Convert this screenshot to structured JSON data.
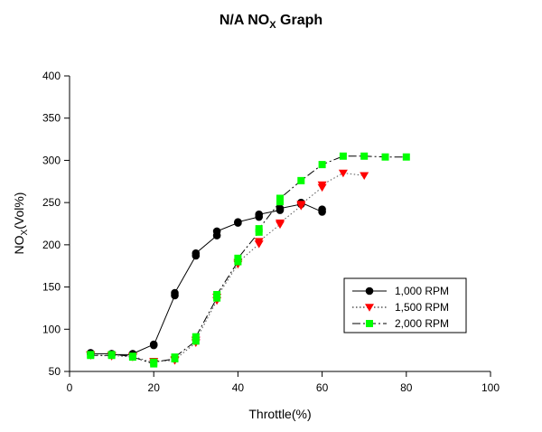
{
  "chart_data": {
    "type": "line",
    "title": {
      "main": "N/A NO",
      "sub": "X",
      "suffix": " Graph"
    },
    "xlabel": "Throttle(%)",
    "ylabel": {
      "main": "NO",
      "sub": "X",
      "suffix": "(Vol%)"
    },
    "xlim": [
      0,
      100
    ],
    "ylim": [
      50,
      400
    ],
    "xticks": [
      0,
      20,
      40,
      60,
      80,
      100
    ],
    "yticks": [
      50,
      100,
      150,
      200,
      250,
      300,
      350,
      400
    ],
    "grid": false,
    "legend_position": "lower-right",
    "series": [
      {
        "name": "1,000 RPM",
        "color": "#000000",
        "marker": "circle",
        "line": "solid",
        "x": [
          5,
          5,
          10,
          10,
          15,
          15,
          20,
          20,
          25,
          25,
          30,
          30,
          35,
          35,
          40,
          40,
          45,
          45,
          50,
          50,
          55,
          55,
          60,
          60
        ],
        "y": [
          72,
          71,
          71,
          70,
          70,
          71,
          82,
          81,
          140,
          143,
          187,
          190,
          211,
          216,
          226,
          227,
          233,
          236,
          241,
          243,
          248,
          250,
          239,
          242
        ]
      },
      {
        "name": "1,500 RPM",
        "color": "#ff0000",
        "marker": "triangle-down",
        "line": "dotted",
        "x": [
          5,
          5,
          10,
          10,
          15,
          15,
          20,
          20,
          25,
          25,
          30,
          30,
          35,
          35,
          40,
          40,
          45,
          45,
          50,
          50,
          55,
          55,
          60,
          60,
          65,
          70
        ],
        "y": [
          69,
          70,
          68,
          69,
          67,
          68,
          60,
          62,
          63,
          64,
          84,
          87,
          134,
          138,
          177,
          179,
          201,
          204,
          224,
          226,
          246,
          248,
          268,
          271,
          285,
          282
        ]
      },
      {
        "name": "2,000 RPM",
        "color": "#00ff00",
        "marker": "square",
        "line": "dashdot",
        "x": [
          5,
          5,
          10,
          10,
          15,
          15,
          20,
          20,
          25,
          25,
          30,
          30,
          35,
          35,
          40,
          40,
          45,
          45,
          50,
          50,
          55,
          60,
          65,
          70,
          75,
          80
        ],
        "y": [
          70,
          69,
          69,
          70,
          68,
          67,
          59,
          61,
          65,
          67,
          86,
          91,
          137,
          141,
          180,
          184,
          215,
          219,
          251,
          255,
          276,
          295,
          305,
          305,
          304,
          304
        ]
      }
    ]
  }
}
